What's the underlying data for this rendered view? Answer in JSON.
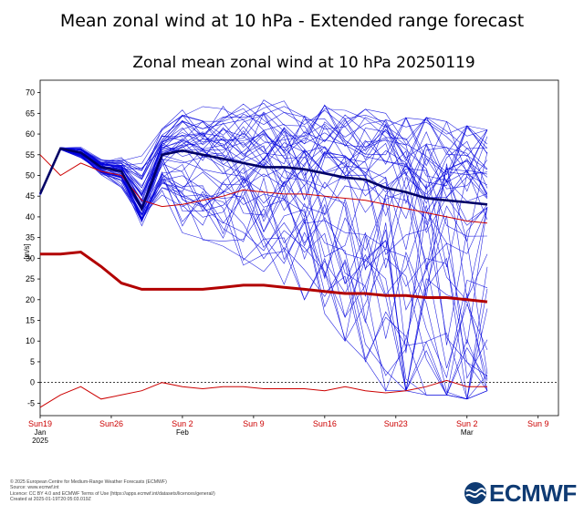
{
  "page": {
    "title": "Mean zonal wind at 10 hPa - Extended range forecast",
    "footer_lines": [
      "© 2025 European Centre for Medium-Range Weather Forecasts (ECMWF)",
      "Source: www.ecmwf.int",
      "Licence: CC BY 4.0 and ECMWF Terms of Use (https://apps.ecmwf.int/datasets/licences/general/)",
      "Created at 2025-01-19T20:05:03.019Z"
    ],
    "logo_text": "ECMWF"
  },
  "chart_data": {
    "type": "line",
    "title": "Zonal mean zonal wind at 10 hPa 20250119",
    "ylabel": "[m/s]",
    "ylim": [
      -8,
      73
    ],
    "yticks": [
      -5,
      0,
      5,
      10,
      15,
      20,
      25,
      30,
      35,
      40,
      45,
      50,
      55,
      60,
      65,
      70
    ],
    "xlim": [
      "2025-01-19",
      "2025-03-11"
    ],
    "xticks": [
      {
        "date": "2025-01-19",
        "label": "Sun19",
        "sub": "Jan",
        "sub2": "2025"
      },
      {
        "date": "2025-01-26",
        "label": "Sun26",
        "sub": "",
        "sub2": ""
      },
      {
        "date": "2025-02-02",
        "label": "Sun 2",
        "sub": "Feb",
        "sub2": ""
      },
      {
        "date": "2025-02-09",
        "label": "Sun 9",
        "sub": "",
        "sub2": ""
      },
      {
        "date": "2025-02-16",
        "label": "Sun16",
        "sub": "",
        "sub2": ""
      },
      {
        "date": "2025-02-23",
        "label": "Sun23",
        "sub": "",
        "sub2": ""
      },
      {
        "date": "2025-03-02",
        "label": "Sun 2",
        "sub": "Mar",
        "sub2": ""
      },
      {
        "date": "2025-03-09",
        "label": "Sun 9",
        "sub": "",
        "sub2": ""
      }
    ],
    "zero_line": 0,
    "colors": {
      "ensemble": "#0000dd",
      "ensemble_mean": "#000066",
      "climatology": "#cc0000",
      "axis_label": "#cc0000"
    },
    "dates": [
      "2025-01-19",
      "2025-01-21",
      "2025-01-23",
      "2025-01-25",
      "2025-01-27",
      "2025-01-29",
      "2025-01-31",
      "2025-02-02",
      "2025-02-04",
      "2025-02-06",
      "2025-02-08",
      "2025-02-10",
      "2025-02-12",
      "2025-02-14",
      "2025-02-16",
      "2025-02-18",
      "2025-02-20",
      "2025-02-22",
      "2025-02-24",
      "2025-02-26",
      "2025-02-28",
      "2025-03-02",
      "2025-03-04"
    ],
    "ensemble_mean": [
      45.5,
      56.5,
      55.5,
      52,
      51,
      42,
      55,
      56,
      55,
      54,
      53,
      52,
      52,
      51.5,
      50.5,
      49.5,
      49,
      47,
      46,
      44.5,
      44,
      43.5,
      43
    ],
    "climatology_mean": [
      55,
      50,
      53,
      51,
      50,
      44,
      42.5,
      43,
      44,
      45,
      46.5,
      46,
      45.5,
      45.5,
      45,
      44.5,
      44,
      43,
      42,
      41,
      40,
      39,
      38.5
    ],
    "climatology_mean_smooth": [
      31,
      31,
      31.5,
      28,
      24,
      22.5,
      22.5,
      22.5,
      22.5,
      23,
      23.5,
      23.5,
      23,
      22.5,
      22,
      21.5,
      21.5,
      21,
      21,
      20.5,
      20.5,
      20,
      19.5
    ],
    "climatology_min": [
      -6,
      -3,
      -1,
      -4,
      -3,
      -2,
      0,
      -1,
      -1.5,
      -1,
      -1,
      -1.5,
      -1.5,
      -1.5,
      -2,
      -1,
      -2,
      -2.5,
      -2,
      -1,
      0.5,
      -1,
      -1
    ],
    "spread_envelope": {
      "upper": [
        46,
        57,
        58,
        55,
        56,
        60,
        63,
        68,
        68,
        69,
        70,
        70,
        68,
        67,
        67,
        66,
        66,
        65,
        64,
        64,
        63,
        62,
        61
      ],
      "lower": [
        45,
        56,
        53,
        49,
        45,
        36,
        40,
        32,
        30,
        28,
        26,
        25,
        22,
        20,
        16,
        10,
        5,
        -2,
        -2,
        -3,
        -3,
        -4,
        -2
      ]
    },
    "series_count": 51
  }
}
